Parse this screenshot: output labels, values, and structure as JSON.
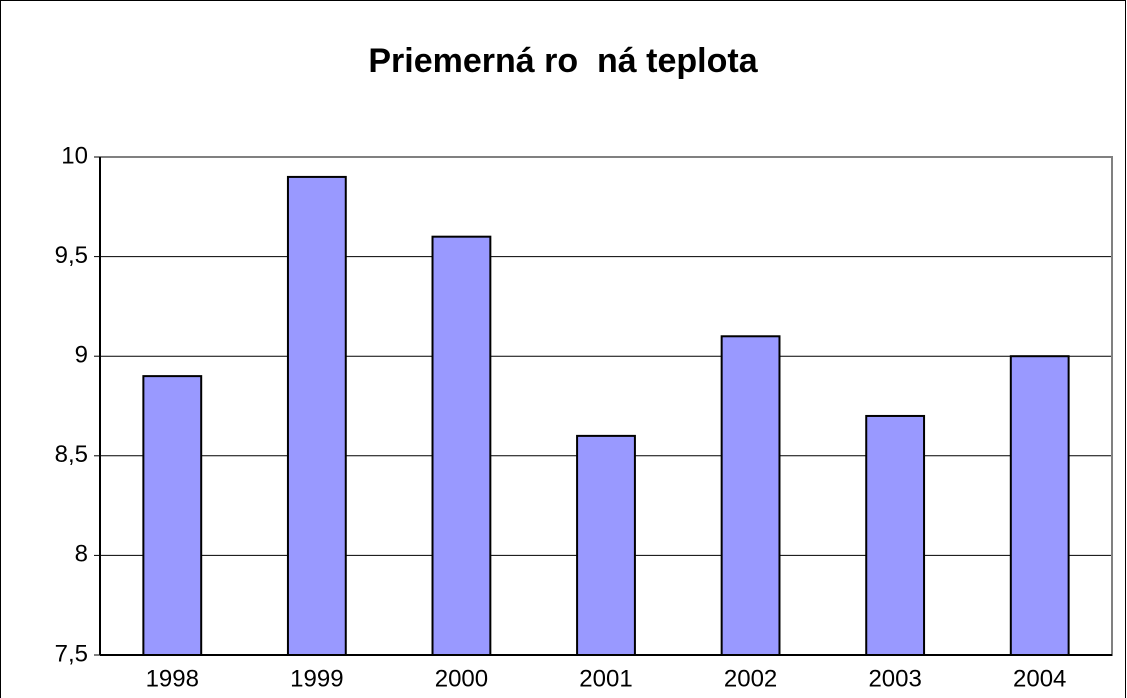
{
  "chart_data": {
    "type": "bar",
    "title": "Priemerná ro  ná teplota",
    "categories": [
      "1998",
      "1999",
      "2000",
      "2001",
      "2002",
      "2003",
      "2004"
    ],
    "values": [
      8.9,
      9.9,
      9.6,
      8.6,
      9.1,
      8.7,
      9.0
    ],
    "color": "#9999ff",
    "ylim": [
      7.5,
      10
    ],
    "yticks": [
      {
        "value": 7.5,
        "label": "7,5"
      },
      8,
      {
        "value": 8.5,
        "label": "8,5"
      },
      9,
      {
        "value": 9.5,
        "label": "9,5"
      },
      10
    ],
    "grid": true
  }
}
